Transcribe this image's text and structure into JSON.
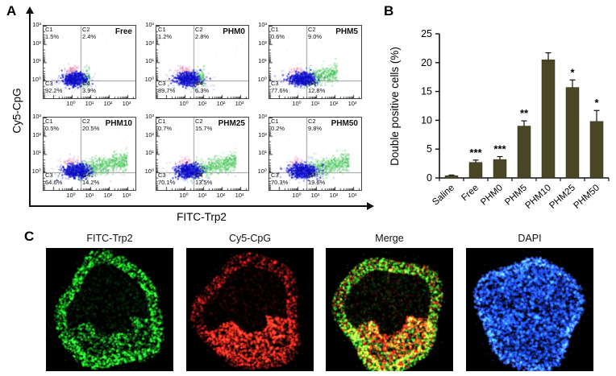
{
  "panelA": {
    "label": "A"
  },
  "panelB": {
    "label": "B"
  },
  "panelC": {
    "label": "C",
    "images": [
      {
        "label": "FITC-Trp2",
        "channel": "green",
        "color": "#21d421"
      },
      {
        "label": "Cy5-CpG",
        "channel": "red",
        "color": "#e01818"
      },
      {
        "label": "Merge",
        "channel": "merge",
        "colors": [
          "#21d421",
          "#e01818"
        ]
      },
      {
        "label": "DAPI",
        "channel": "blue",
        "color": "#1f35e6"
      }
    ]
  },
  "chart_data": [
    {
      "type": "scatter",
      "subtype": "flow-cytometry-quadrants",
      "panel": "A",
      "xlabel": "FITC-Trp2",
      "ylabel": "Cy5-CpG",
      "axis_scale": "log",
      "x_ticks": [
        "10⁰",
        "10¹",
        "10²",
        "10³"
      ],
      "y_ticks": [
        "10³",
        "10²",
        "10¹",
        "10⁰"
      ],
      "quadrant_keys": [
        "C1",
        "C2",
        "C3",
        "C4"
      ],
      "plots": [
        {
          "name": "Free",
          "C1": 1.5,
          "C2": 2.4,
          "C3": 92.2,
          "C4": 3.9
        },
        {
          "name": "PHM0",
          "C1": 1.2,
          "C2": 2.8,
          "C3": 89.7,
          "C4": 6.3
        },
        {
          "name": "PHM5",
          "C1": 0.6,
          "C2": 9.0,
          "C3": 77.6,
          "C4": 12.8
        },
        {
          "name": "PHM10",
          "C1": 0.5,
          "C2": 20.5,
          "C3": 64.6,
          "C4": 14.2
        },
        {
          "name": "PHM25",
          "C1": 0.7,
          "C2": 15.7,
          "C3": 70.1,
          "C4": 13.5
        },
        {
          "name": "PHM50",
          "C1": 0.2,
          "C2": 9.8,
          "C3": 70.3,
          "C4": 19.6
        }
      ],
      "dot_colors": {
        "negative": "#1a1ac8",
        "debris": "#ee8aa6",
        "positive": "#50c85a"
      }
    },
    {
      "type": "bar",
      "panel": "B",
      "ylabel": "Double positive cells (%)",
      "xlabel": "",
      "categories": [
        "Saline",
        "Free",
        "PHM0",
        "PHM5",
        "PHM10",
        "PHM25",
        "PHM50"
      ],
      "values": [
        0.4,
        2.7,
        3.2,
        9.0,
        20.5,
        15.7,
        9.8
      ],
      "errors": [
        0.1,
        0.4,
        0.5,
        0.9,
        1.2,
        1.3,
        1.9
      ],
      "significance": [
        "",
        "***",
        "***",
        "**",
        "",
        "*",
        "*"
      ],
      "ylim": [
        0,
        25
      ],
      "yticks": [
        0,
        5,
        10,
        15,
        20,
        25
      ],
      "grid": false,
      "bar_color": "#4a4626"
    }
  ]
}
